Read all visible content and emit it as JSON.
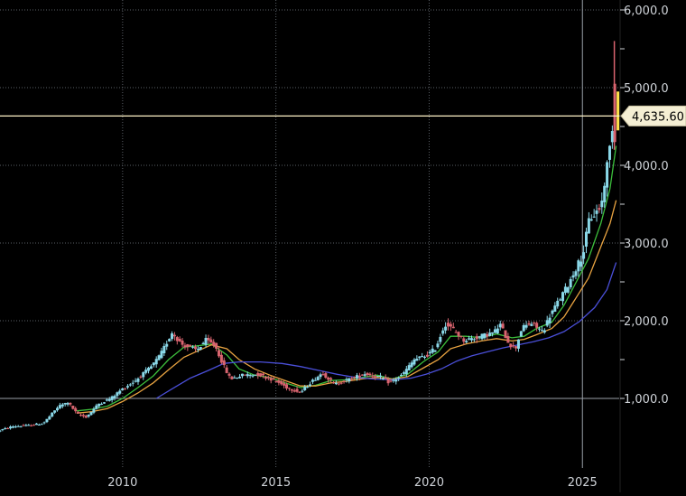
{
  "chart_data": {
    "type": "candlestick",
    "x_range": [
      2006.0,
      2026.2
    ],
    "x_ticks": [
      2010,
      2015,
      2020,
      2025
    ],
    "x_tick_labels": [
      "2010",
      "2015",
      "2020",
      "2025"
    ],
    "ylim": [
      500,
      6200
    ],
    "y_ticks": [
      1000,
      2000,
      3000,
      4000,
      5000,
      6000
    ],
    "y_tick_labels": [
      "1,000.0",
      "2,000.0",
      "3,000.0",
      "4,000.0",
      "5,000.0",
      "6,000.0"
    ],
    "y_minor_ticks": [
      1500,
      2500,
      3500,
      4500,
      5500
    ],
    "current_price": 4635.6,
    "current_price_label": "4,635.60",
    "grid": true,
    "colors": {
      "background": "#000000",
      "grid_dotted": "#5a5f66",
      "grid_solid": "#9aa0a8",
      "axis_text": "#cfd3d8",
      "candle_up": "#8ad8e8",
      "candle_down": "#d9646f",
      "ma_short": "#3cbf3c",
      "ma_mid": "#e8a341",
      "ma_long": "#4a4fd8",
      "price_line": "#fff3c8",
      "price_tag_bg": "#f5efd4",
      "price_tag_text": "#000000",
      "last_candle": "#ffe24a"
    },
    "price_path": [
      [
        2006.0,
        580
      ],
      [
        2006.5,
        640
      ],
      [
        2007.0,
        650
      ],
      [
        2007.5,
        680
      ],
      [
        2008.0,
        900
      ],
      [
        2008.3,
        950
      ],
      [
        2008.6,
        800
      ],
      [
        2008.9,
        760
      ],
      [
        2009.3,
        930
      ],
      [
        2009.7,
        1000
      ],
      [
        2010.0,
        1100
      ],
      [
        2010.5,
        1230
      ],
      [
        2011.0,
        1400
      ],
      [
        2011.3,
        1550
      ],
      [
        2011.7,
        1850
      ],
      [
        2012.0,
        1700
      ],
      [
        2012.5,
        1620
      ],
      [
        2012.8,
        1750
      ],
      [
        2013.1,
        1680
      ],
      [
        2013.4,
        1400
      ],
      [
        2013.6,
        1250
      ],
      [
        2014.0,
        1300
      ],
      [
        2014.5,
        1310
      ],
      [
        2015.0,
        1240
      ],
      [
        2015.5,
        1130
      ],
      [
        2015.9,
        1080
      ],
      [
        2016.2,
        1200
      ],
      [
        2016.6,
        1330
      ],
      [
        2017.0,
        1180
      ],
      [
        2017.5,
        1250
      ],
      [
        2018.0,
        1320
      ],
      [
        2018.5,
        1270
      ],
      [
        2018.8,
        1200
      ],
      [
        2019.2,
        1300
      ],
      [
        2019.6,
        1500
      ],
      [
        2020.0,
        1550
      ],
      [
        2020.3,
        1650
      ],
      [
        2020.6,
        1960
      ],
      [
        2020.9,
        1880
      ],
      [
        2021.2,
        1750
      ],
      [
        2021.6,
        1780
      ],
      [
        2022.2,
        1850
      ],
      [
        2022.4,
        1950
      ],
      [
        2022.7,
        1700
      ],
      [
        2022.9,
        1640
      ],
      [
        2023.1,
        1900
      ],
      [
        2023.4,
        1970
      ],
      [
        2023.8,
        1860
      ],
      [
        2024.0,
        2050
      ],
      [
        2024.3,
        2250
      ],
      [
        2024.6,
        2450
      ],
      [
        2024.9,
        2700
      ],
      [
        2025.1,
        2850
      ],
      [
        2025.3,
        3300
      ],
      [
        2025.5,
        3380
      ],
      [
        2025.7,
        3480
      ],
      [
        2025.85,
        3900
      ],
      [
        2026.0,
        4300
      ],
      [
        2026.1,
        4635.6
      ]
    ],
    "moving_averages": [
      {
        "points": [
          [
            2008.5,
            840
          ],
          [
            2009.0,
            860
          ],
          [
            2009.5,
            900
          ],
          [
            2010.0,
            1000
          ],
          [
            2010.5,
            1140
          ],
          [
            2011.0,
            1290
          ],
          [
            2011.5,
            1500
          ],
          [
            2012.0,
            1660
          ],
          [
            2012.5,
            1680
          ],
          [
            2012.9,
            1700
          ],
          [
            2013.4,
            1560
          ],
          [
            2013.8,
            1380
          ],
          [
            2014.3,
            1300
          ],
          [
            2014.8,
            1270
          ],
          [
            2015.3,
            1200
          ],
          [
            2015.8,
            1140
          ],
          [
            2016.3,
            1170
          ],
          [
            2016.8,
            1230
          ],
          [
            2017.3,
            1240
          ],
          [
            2017.8,
            1270
          ],
          [
            2018.3,
            1300
          ],
          [
            2018.8,
            1250
          ],
          [
            2019.3,
            1310
          ],
          [
            2019.8,
            1470
          ],
          [
            2020.3,
            1600
          ],
          [
            2020.7,
            1800
          ],
          [
            2021.2,
            1800
          ],
          [
            2021.7,
            1780
          ],
          [
            2022.2,
            1830
          ],
          [
            2022.7,
            1780
          ],
          [
            2023.1,
            1800
          ],
          [
            2023.5,
            1900
          ],
          [
            2024.0,
            1980
          ],
          [
            2024.4,
            2200
          ],
          [
            2024.8,
            2500
          ],
          [
            2025.2,
            2800
          ],
          [
            2025.6,
            3250
          ],
          [
            2025.9,
            3700
          ],
          [
            2026.1,
            4250
          ]
        ]
      },
      {
        "points": [
          [
            2008.5,
            810
          ],
          [
            2009.0,
            830
          ],
          [
            2009.5,
            870
          ],
          [
            2010.0,
            960
          ],
          [
            2010.5,
            1070
          ],
          [
            2011.0,
            1200
          ],
          [
            2011.5,
            1370
          ],
          [
            2012.0,
            1530
          ],
          [
            2012.5,
            1620
          ],
          [
            2012.9,
            1690
          ],
          [
            2013.4,
            1640
          ],
          [
            2013.8,
            1500
          ],
          [
            2014.3,
            1380
          ],
          [
            2014.8,
            1300
          ],
          [
            2015.3,
            1230
          ],
          [
            2015.8,
            1160
          ],
          [
            2016.3,
            1160
          ],
          [
            2016.8,
            1200
          ],
          [
            2017.3,
            1220
          ],
          [
            2017.8,
            1250
          ],
          [
            2018.3,
            1270
          ],
          [
            2018.8,
            1250
          ],
          [
            2019.3,
            1280
          ],
          [
            2019.8,
            1390
          ],
          [
            2020.3,
            1500
          ],
          [
            2020.7,
            1640
          ],
          [
            2021.2,
            1700
          ],
          [
            2021.7,
            1740
          ],
          [
            2022.2,
            1770
          ],
          [
            2022.7,
            1740
          ],
          [
            2023.1,
            1760
          ],
          [
            2023.5,
            1820
          ],
          [
            2024.0,
            1900
          ],
          [
            2024.4,
            2050
          ],
          [
            2024.8,
            2300
          ],
          [
            2025.2,
            2550
          ],
          [
            2025.6,
            2950
          ],
          [
            2025.9,
            3250
          ],
          [
            2026.1,
            3550
          ]
        ]
      },
      {
        "points": [
          [
            2011.1,
            1000
          ],
          [
            2011.6,
            1120
          ],
          [
            2012.2,
            1260
          ],
          [
            2012.8,
            1360
          ],
          [
            2013.3,
            1450
          ],
          [
            2013.8,
            1470
          ],
          [
            2014.5,
            1470
          ],
          [
            2015.2,
            1450
          ],
          [
            2015.8,
            1410
          ],
          [
            2016.4,
            1360
          ],
          [
            2017.0,
            1310
          ],
          [
            2017.6,
            1270
          ],
          [
            2018.2,
            1250
          ],
          [
            2018.8,
            1240
          ],
          [
            2019.4,
            1260
          ],
          [
            2019.9,
            1310
          ],
          [
            2020.4,
            1380
          ],
          [
            2020.9,
            1480
          ],
          [
            2021.4,
            1550
          ],
          [
            2021.9,
            1600
          ],
          [
            2022.4,
            1650
          ],
          [
            2022.9,
            1690
          ],
          [
            2023.4,
            1730
          ],
          [
            2023.9,
            1780
          ],
          [
            2024.4,
            1860
          ],
          [
            2024.9,
            1990
          ],
          [
            2025.4,
            2170
          ],
          [
            2025.8,
            2400
          ],
          [
            2026.1,
            2750
          ]
        ]
      }
    ]
  }
}
